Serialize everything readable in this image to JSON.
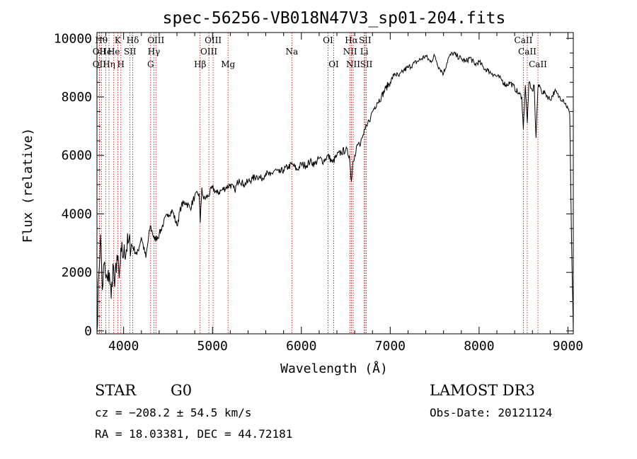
{
  "chart_data": {
    "type": "line",
    "title": "spec-56256-VB018N47V3_sp01-204.fits",
    "xlabel": "Wavelength (Å)",
    "ylabel": "Flux (relative)",
    "xlim": [
      3700,
      9060
    ],
    "ylim": [
      -100,
      10200
    ],
    "x_ticks": [
      4000,
      5000,
      6000,
      7000,
      8000,
      9000
    ],
    "y_ticks": [
      0,
      2000,
      4000,
      6000,
      8000,
      10000
    ],
    "x_tick_labels": [
      "4000",
      "5000",
      "6000",
      "7000",
      "8000",
      "9000"
    ],
    "y_tick_labels": [
      "0",
      "2000",
      "4000",
      "6000",
      "8000",
      "10000"
    ],
    "grid": false,
    "series": [
      {
        "name": "flux",
        "x": [
          3700,
          3720,
          3740,
          3760,
          3780,
          3800,
          3820,
          3840,
          3860,
          3880,
          3900,
          3925,
          3950,
          3975,
          4000,
          4050,
          4100,
          4150,
          4200,
          4250,
          4300,
          4350,
          4400,
          4450,
          4500,
          4550,
          4600,
          4650,
          4700,
          4750,
          4800,
          4850,
          4862,
          4880,
          4900,
          4950,
          5000,
          5050,
          5100,
          5150,
          5200,
          5250,
          5300,
          5350,
          5400,
          5450,
          5500,
          5550,
          5600,
          5650,
          5700,
          5750,
          5800,
          5850,
          5900,
          5950,
          6000,
          6050,
          6100,
          6150,
          6200,
          6250,
          6300,
          6350,
          6400,
          6450,
          6500,
          6540,
          6563,
          6580,
          6600,
          6620,
          6640,
          6660,
          6680,
          6700,
          6720,
          6740,
          6760,
          6780,
          6800,
          6850,
          6900,
          6950,
          7000,
          7050,
          7100,
          7150,
          7200,
          7250,
          7300,
          7350,
          7400,
          7450,
          7500,
          7550,
          7600,
          7650,
          7700,
          7750,
          7800,
          7850,
          7900,
          7950,
          8000,
          8050,
          8100,
          8150,
          8200,
          8250,
          8300,
          8350,
          8400,
          8450,
          8480,
          8498,
          8520,
          8542,
          8560,
          8580,
          8600,
          8620,
          8640,
          8662,
          8680,
          8700,
          8750,
          8800,
          8850,
          8900,
          8950,
          9000,
          9020,
          9040,
          9060
        ],
        "y": [
          0,
          1900,
          3300,
          1400,
          2300,
          1800,
          1700,
          2000,
          1100,
          2300,
          1500,
          2600,
          1800,
          2700,
          2600,
          3000,
          2900,
          2600,
          3200,
          2500,
          3600,
          3100,
          3300,
          3700,
          4000,
          4100,
          3600,
          4300,
          4400,
          4200,
          4600,
          4700,
          3700,
          4900,
          4500,
          4600,
          4900,
          4700,
          4800,
          4900,
          5000,
          4800,
          5200,
          5000,
          5100,
          5200,
          5300,
          5200,
          5400,
          5300,
          5500,
          5400,
          5500,
          5600,
          5700,
          5500,
          5700,
          5650,
          5800,
          5700,
          5900,
          5800,
          6000,
          5750,
          6000,
          6100,
          6200,
          6000,
          5100,
          5800,
          6000,
          6300,
          6400,
          6300,
          6600,
          6700,
          6900,
          7000,
          7200,
          7300,
          7500,
          7800,
          8000,
          8300,
          8500,
          8800,
          8700,
          8900,
          9000,
          9100,
          9200,
          9300,
          9400,
          9200,
          9400,
          9000,
          8800,
          9300,
          9500,
          9400,
          9300,
          9200,
          9350,
          9100,
          9200,
          9000,
          8900,
          8800,
          8700,
          8600,
          8400,
          8500,
          8300,
          8100,
          8000,
          6900,
          8400,
          7100,
          8500,
          8300,
          8200,
          8400,
          6600,
          8300,
          8400,
          8200,
          8100,
          7900,
          8200,
          8000,
          7900,
          7600,
          7400,
          3100,
          0
        ]
      }
    ],
    "line_markers": [
      {
        "wavelength": 3750,
        "label": "Hθ",
        "row": 1
      },
      {
        "wavelength": 3727,
        "label": "OII",
        "row": 2
      },
      {
        "wavelength": 3727,
        "label": "OII",
        "row": 3
      },
      {
        "wavelength": 3798,
        "label": "He",
        "row": 2
      },
      {
        "wavelength": 3835,
        "label": "Hη",
        "row": 3
      },
      {
        "wavelength": 3889,
        "label": "He",
        "row": 2
      },
      {
        "wavelength": 3934,
        "label": "K",
        "row": 1
      },
      {
        "wavelength": 3969,
        "label": "H",
        "row": 3
      },
      {
        "wavelength": 4072,
        "label": "SII",
        "row": 2
      },
      {
        "wavelength": 4102,
        "label": "Hδ",
        "row": 1
      },
      {
        "wavelength": 4304,
        "label": "G",
        "row": 3
      },
      {
        "wavelength": 4341,
        "label": "Hγ",
        "row": 2
      },
      {
        "wavelength": 4363,
        "label": "OIII",
        "row": 1
      },
      {
        "wavelength": 4861,
        "label": "Hβ",
        "row": 3
      },
      {
        "wavelength": 4959,
        "label": "OIII",
        "row": 2
      },
      {
        "wavelength": 5007,
        "label": "OIII",
        "row": 1
      },
      {
        "wavelength": 5175,
        "label": "Mg",
        "row": 3
      },
      {
        "wavelength": 5893,
        "label": "Na",
        "row": 2
      },
      {
        "wavelength": 6300,
        "label": "OI",
        "row": 1
      },
      {
        "wavelength": 6364,
        "label": "OI",
        "row": 3
      },
      {
        "wavelength": 6548,
        "label": "NII",
        "row": 2
      },
      {
        "wavelength": 6563,
        "label": "Hα",
        "row": 1
      },
      {
        "wavelength": 6583,
        "label": "NII",
        "row": 3
      },
      {
        "wavelength": 6708,
        "label": "Li",
        "row": 2
      },
      {
        "wavelength": 6717,
        "label": "SII",
        "row": 1
      },
      {
        "wavelength": 6731,
        "label": "SII",
        "row": 3
      },
      {
        "wavelength": 8498,
        "label": "CaII",
        "row": 1
      },
      {
        "wavelength": 8542,
        "label": "CaII",
        "row": 2
      },
      {
        "wavelength": 8662,
        "label": "CaII",
        "row": 3
      }
    ]
  },
  "info": {
    "object_class": "STAR",
    "subclass": "G0",
    "survey": "LAMOST DR3",
    "cz": "cz = −208.2 ± 54.5 km/s",
    "obs_date": "Obs-Date: 20121124",
    "ra_dec": "RA =  18.03381, DEC =  44.72181"
  }
}
